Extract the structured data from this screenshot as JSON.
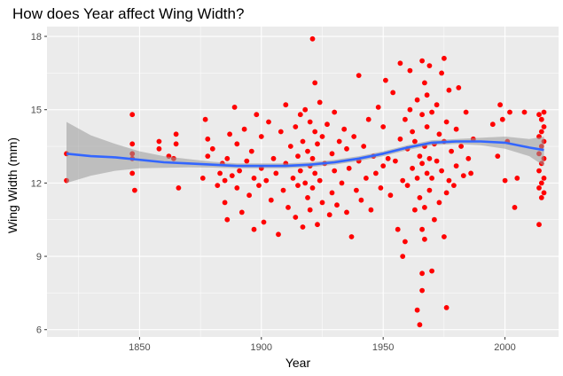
{
  "chart_data": {
    "type": "scatter",
    "title": "How does Year affect Wing Width?",
    "xlabel": "Year",
    "ylabel": "Wing Width (mm)",
    "xlim": [
      1812,
      2022
    ],
    "ylim": [
      5.7,
      18.4
    ],
    "xticks": [
      1850,
      1900,
      1950,
      2000
    ],
    "yticks": [
      6,
      9,
      12,
      15,
      18
    ],
    "grid": true,
    "background": "#ebebeb",
    "grid_color": "#ffffff",
    "point_color": "#ff0000",
    "smooth_color": "#3366ff",
    "band_color": "#999999",
    "smooth": {
      "x": [
        1820,
        1830,
        1840,
        1850,
        1860,
        1870,
        1880,
        1890,
        1900,
        1910,
        1920,
        1930,
        1940,
        1950,
        1960,
        1970,
        1980,
        1990,
        2000,
        2010,
        2016
      ],
      "y": [
        13.2,
        13.1,
        13.05,
        12.95,
        12.85,
        12.8,
        12.75,
        12.7,
        12.7,
        12.7,
        12.75,
        12.85,
        13.0,
        13.2,
        13.45,
        13.65,
        13.7,
        13.7,
        13.65,
        13.45,
        13.35
      ],
      "lower": [
        12.0,
        12.3,
        12.5,
        12.6,
        12.62,
        12.64,
        12.63,
        12.6,
        12.6,
        12.6,
        12.65,
        12.75,
        12.9,
        13.1,
        13.35,
        13.55,
        13.6,
        13.55,
        13.4,
        13.1,
        12.7
      ],
      "upper": [
        14.5,
        13.95,
        13.6,
        13.3,
        13.1,
        12.98,
        12.87,
        12.8,
        12.8,
        12.8,
        12.85,
        12.95,
        13.1,
        13.3,
        13.55,
        13.75,
        13.8,
        13.85,
        13.9,
        13.8,
        13.9
      ]
    },
    "points": [
      [
        1820,
        13.2
      ],
      [
        1820,
        12.1
      ],
      [
        1847,
        14.8
      ],
      [
        1847,
        13.6
      ],
      [
        1847,
        13.2
      ],
      [
        1847,
        13.0
      ],
      [
        1847,
        12.4
      ],
      [
        1848,
        11.7
      ],
      [
        1858,
        13.7
      ],
      [
        1858,
        13.4
      ],
      [
        1862,
        13.1
      ],
      [
        1864,
        13.0
      ],
      [
        1865,
        14.0
      ],
      [
        1865,
        13.6
      ],
      [
        1866,
        11.8
      ],
      [
        1876,
        12.2
      ],
      [
        1877,
        14.6
      ],
      [
        1878,
        13.8
      ],
      [
        1878,
        13.1
      ],
      [
        1880,
        13.4
      ],
      [
        1882,
        11.9
      ],
      [
        1883,
        12.4
      ],
      [
        1884,
        12.8
      ],
      [
        1885,
        11.2
      ],
      [
        1885,
        12.1
      ],
      [
        1886,
        10.5
      ],
      [
        1886,
        13.0
      ],
      [
        1887,
        14.0
      ],
      [
        1888,
        12.3
      ],
      [
        1889,
        15.1
      ],
      [
        1890,
        11.8
      ],
      [
        1890,
        13.6
      ],
      [
        1891,
        12.5
      ],
      [
        1892,
        10.8
      ],
      [
        1893,
        14.2
      ],
      [
        1894,
        12.9
      ],
      [
        1895,
        11.5
      ],
      [
        1896,
        13.3
      ],
      [
        1897,
        10.1
      ],
      [
        1897,
        12.2
      ],
      [
        1898,
        14.8
      ],
      [
        1899,
        11.9
      ],
      [
        1900,
        12.6
      ],
      [
        1900,
        13.9
      ],
      [
        1901,
        10.4
      ],
      [
        1902,
        12.1
      ],
      [
        1903,
        14.5
      ],
      [
        1904,
        11.3
      ],
      [
        1905,
        13.0
      ],
      [
        1906,
        12.4
      ],
      [
        1907,
        9.9
      ],
      [
        1908,
        14.1
      ],
      [
        1909,
        11.7
      ],
      [
        1910,
        12.8
      ],
      [
        1910,
        15.2
      ],
      [
        1911,
        11.0
      ],
      [
        1912,
        13.5
      ],
      [
        1913,
        12.2
      ],
      [
        1914,
        14.3
      ],
      [
        1914,
        10.6
      ],
      [
        1915,
        13.1
      ],
      [
        1915,
        11.9
      ],
      [
        1916,
        12.5
      ],
      [
        1916,
        14.8
      ],
      [
        1917,
        10.2
      ],
      [
        1917,
        13.7
      ],
      [
        1918,
        12.0
      ],
      [
        1918,
        15.0
      ],
      [
        1919,
        11.4
      ],
      [
        1919,
        13.3
      ],
      [
        1920,
        12.7
      ],
      [
        1920,
        14.5
      ],
      [
        1920,
        10.9
      ],
      [
        1921,
        17.9
      ],
      [
        1921,
        13.0
      ],
      [
        1921,
        11.8
      ],
      [
        1922,
        16.1
      ],
      [
        1922,
        12.4
      ],
      [
        1922,
        14.1
      ],
      [
        1923,
        10.3
      ],
      [
        1923,
        13.6
      ],
      [
        1924,
        12.1
      ],
      [
        1924,
        15.3
      ],
      [
        1925,
        11.2
      ],
      [
        1925,
        13.9
      ],
      [
        1926,
        12.8
      ],
      [
        1927,
        14.4
      ],
      [
        1928,
        10.7
      ],
      [
        1929,
        13.2
      ],
      [
        1929,
        11.6
      ],
      [
        1930,
        12.5
      ],
      [
        1930,
        14.9
      ],
      [
        1931,
        11.1
      ],
      [
        1932,
        13.7
      ],
      [
        1933,
        12.0
      ],
      [
        1934,
        14.2
      ],
      [
        1935,
        10.8
      ],
      [
        1935,
        13.4
      ],
      [
        1936,
        12.6
      ],
      [
        1937,
        9.8
      ],
      [
        1938,
        13.9
      ],
      [
        1939,
        11.7
      ],
      [
        1940,
        12.9
      ],
      [
        1940,
        16.4
      ],
      [
        1941,
        11.3
      ],
      [
        1942,
        13.5
      ],
      [
        1943,
        12.2
      ],
      [
        1944,
        14.6
      ],
      [
        1945,
        10.9
      ],
      [
        1946,
        13.1
      ],
      [
        1947,
        12.4
      ],
      [
        1948,
        15.1
      ],
      [
        1949,
        11.8
      ],
      [
        1950,
        12.7
      ],
      [
        1950,
        14.3
      ],
      [
        1951,
        16.2
      ],
      [
        1952,
        13.0
      ],
      [
        1953,
        11.5
      ],
      [
        1954,
        15.7
      ],
      [
        1955,
        12.9
      ],
      [
        1956,
        10.1
      ],
      [
        1957,
        16.9
      ],
      [
        1957,
        13.8
      ],
      [
        1958,
        12.1
      ],
      [
        1958,
        9.0
      ],
      [
        1959,
        14.6
      ],
      [
        1959,
        9.6
      ],
      [
        1960,
        13.4
      ],
      [
        1960,
        11.9
      ],
      [
        1961,
        16.6
      ],
      [
        1961,
        15.0
      ],
      [
        1962,
        12.6
      ],
      [
        1962,
        14.1
      ],
      [
        1963,
        10.9
      ],
      [
        1963,
        13.7
      ],
      [
        1964,
        12.2
      ],
      [
        1964,
        15.4
      ],
      [
        1964,
        6.8
      ],
      [
        1965,
        11.4
      ],
      [
        1965,
        6.2
      ],
      [
        1965,
        13.1
      ],
      [
        1966,
        17.0
      ],
      [
        1966,
        14.8
      ],
      [
        1966,
        12.8
      ],
      [
        1966,
        10.1
      ],
      [
        1966,
        7.6
      ],
      [
        1966,
        8.3
      ],
      [
        1967,
        16.1
      ],
      [
        1967,
        13.5
      ],
      [
        1967,
        11.0
      ],
      [
        1967,
        9.7
      ],
      [
        1968,
        15.6
      ],
      [
        1968,
        12.4
      ],
      [
        1968,
        14.3
      ],
      [
        1969,
        16.8
      ],
      [
        1969,
        13.0
      ],
      [
        1969,
        11.7
      ],
      [
        1970,
        12.2
      ],
      [
        1970,
        14.9
      ],
      [
        1970,
        8.4
      ],
      [
        1971,
        13.6
      ],
      [
        1971,
        10.5
      ],
      [
        1972,
        15.2
      ],
      [
        1972,
        12.9
      ],
      [
        1973,
        11.2
      ],
      [
        1973,
        14.0
      ],
      [
        1974,
        16.5
      ],
      [
        1974,
        12.5
      ],
      [
        1975,
        17.1
      ],
      [
        1975,
        13.7
      ],
      [
        1975,
        9.8
      ],
      [
        1976,
        6.9
      ],
      [
        1976,
        11.6
      ],
      [
        1976,
        14.5
      ],
      [
        1977,
        12.1
      ],
      [
        1977,
        15.8
      ],
      [
        1978,
        13.3
      ],
      [
        1979,
        11.9
      ],
      [
        1980,
        14.2
      ],
      [
        1980,
        12.7
      ],
      [
        1981,
        15.9
      ],
      [
        1982,
        13.5
      ],
      [
        1983,
        12.3
      ],
      [
        1984,
        14.9
      ],
      [
        1985,
        13.0
      ],
      [
        1986,
        12.4
      ],
      [
        1987,
        13.8
      ],
      [
        1995,
        14.4
      ],
      [
        1997,
        13.1
      ],
      [
        1998,
        15.2
      ],
      [
        1999,
        14.6
      ],
      [
        2000,
        12.1
      ],
      [
        2001,
        13.7
      ],
      [
        2002,
        14.9
      ],
      [
        2004,
        11.0
      ],
      [
        2005,
        12.2
      ],
      [
        2008,
        14.9
      ],
      [
        2014,
        14.8
      ],
      [
        2014,
        13.9
      ],
      [
        2014,
        13.2
      ],
      [
        2014,
        12.5
      ],
      [
        2014,
        11.8
      ],
      [
        2014,
        10.3
      ],
      [
        2015,
        14.6
      ],
      [
        2015,
        14.1
      ],
      [
        2015,
        13.5
      ],
      [
        2015,
        12.8
      ],
      [
        2015,
        12.0
      ],
      [
        2015,
        11.4
      ],
      [
        2016,
        14.9
      ],
      [
        2016,
        14.3
      ],
      [
        2016,
        13.7
      ],
      [
        2016,
        13.0
      ],
      [
        2016,
        12.2
      ],
      [
        2016,
        11.6
      ]
    ]
  }
}
